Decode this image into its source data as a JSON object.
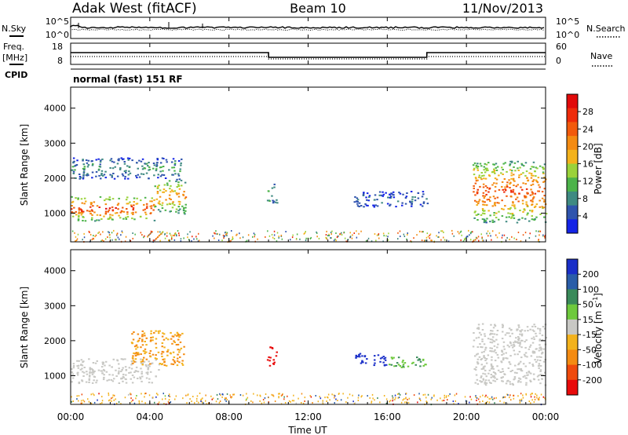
{
  "header": {
    "station": "Adak West (fitACF)",
    "beam": "Beam 10",
    "date": "11/Nov/2013"
  },
  "noise_panel": {
    "left_label": "N.Sky",
    "left_ticks": [
      "10^5",
      "10^0"
    ],
    "right_label": "N.Search",
    "right_ticks": [
      "10^5",
      "10^0"
    ]
  },
  "freq_panel": {
    "left_label_1": "Freq.",
    "left_label_2": "[MHz]",
    "left_ticks": [
      "18",
      "8"
    ],
    "right_label": "Nave",
    "right_ticks": [
      "60",
      "0"
    ]
  },
  "cpid": {
    "label": "CPID",
    "mode": "normal (fast) 151 RF"
  },
  "x_axis": {
    "label": "Time UT",
    "ticks": [
      "00:00",
      "04:00",
      "08:00",
      "12:00",
      "16:00",
      "20:00",
      "00:00"
    ]
  },
  "power_colorbar": {
    "label": "Power [dB]",
    "ticks": [
      "4",
      "8",
      "12",
      "16",
      "20",
      "24",
      "28"
    ],
    "colors": [
      "#1424e6",
      "#2f54ad",
      "#3f8a82",
      "#4cb34a",
      "#9ad23a",
      "#f3b21c",
      "#f48b12",
      "#f25a0c",
      "#ee2b0a",
      "#e10a0a"
    ]
  },
  "velocity_colorbar": {
    "label": "Velocity [m s",
    "label_sup": "-1",
    "label_close": "]",
    "ticks": [
      "200",
      "100",
      "50",
      "15",
      "-15",
      "-50",
      "-100",
      "-200"
    ],
    "colors": [
      "#1a2fc8",
      "#2a5da8",
      "#3a8a5a",
      "#6ec93c",
      "#c8c8c4",
      "#f3b21c",
      "#f48b12",
      "#ef4a0c",
      "#e80a0a"
    ]
  },
  "chart_data": [
    {
      "type": "heatmap",
      "title": "Power",
      "ylabel": "Slant Range [km]",
      "xlabel": "",
      "xlim": [
        0,
        24
      ],
      "ylim": [
        180,
        4600
      ],
      "y_ticks": [
        1000,
        2000,
        3000,
        4000
      ],
      "colorbar": {
        "label": "Power [dB]",
        "range": [
          0,
          32
        ]
      },
      "regions": [
        {
          "t0": 0.0,
          "t1": 4.2,
          "r0": 800,
          "r1": 1500,
          "value": 28
        },
        {
          "t0": 4.2,
          "t1": 5.8,
          "r0": 1000,
          "r1": 2000,
          "value": 22
        },
        {
          "t0": 0.0,
          "t1": 5.6,
          "r0": 2000,
          "r1": 2600,
          "value": 10
        },
        {
          "t0": 9.9,
          "t1": 10.4,
          "r0": 1300,
          "r1": 1850,
          "value": 14
        },
        {
          "t0": 14.3,
          "t1": 18.0,
          "r0": 1200,
          "r1": 1650,
          "value": 6
        },
        {
          "t0": 20.3,
          "t1": 24.0,
          "r0": 750,
          "r1": 2500,
          "value": 26
        }
      ]
    },
    {
      "type": "heatmap",
      "title": "Velocity",
      "ylabel": "Slant Range [km]",
      "xlabel": "Time UT",
      "xlim": [
        0,
        24
      ],
      "ylim": [
        180,
        4600
      ],
      "y_ticks": [
        1000,
        2000,
        3000,
        4000
      ],
      "colorbar": {
        "label": "Velocity [m s-1]",
        "range": [
          -200,
          200
        ]
      },
      "regions": [
        {
          "t0": 0.0,
          "t1": 4.5,
          "r0": 800,
          "r1": 1500,
          "value": 0
        },
        {
          "t0": 3.0,
          "t1": 5.7,
          "r0": 1300,
          "r1": 2300,
          "value": -50
        },
        {
          "t0": 9.9,
          "t1": 10.4,
          "r0": 1300,
          "r1": 1850,
          "value": -200
        },
        {
          "t0": 14.3,
          "t1": 16.0,
          "r0": 1300,
          "r1": 1650,
          "value": 200
        },
        {
          "t0": 16.0,
          "t1": 18.0,
          "r0": 1250,
          "r1": 1550,
          "value": 30
        },
        {
          "t0": 20.3,
          "t1": 24.0,
          "r0": 750,
          "r1": 2500,
          "value": 0
        }
      ]
    }
  ]
}
